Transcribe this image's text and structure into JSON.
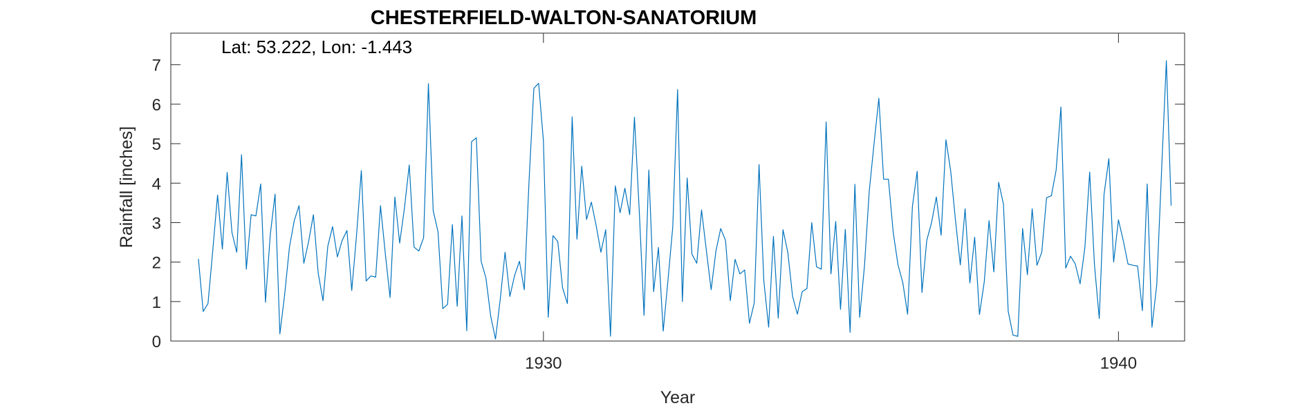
{
  "chart_data": {
    "type": "line",
    "title": "CHESTERFIELD-WALTON-SANATORIUM",
    "annotation": "Lat: 53.222, Lon: -1.443",
    "xlabel": "Year",
    "ylabel": "Rainfall [inches]",
    "xlim": [
      1923.52,
      1941.15
    ],
    "ylim": [
      0,
      7.8
    ],
    "xticks": [
      1930,
      1940
    ],
    "yticks": [
      0,
      1,
      2,
      3,
      4,
      5,
      6,
      7
    ],
    "grid": false,
    "series_color": "#0072BD",
    "series": [
      {
        "x_start": 1924.0,
        "x_step": 0.08333,
        "values": [
          2.08,
          0.75,
          0.95,
          2.3,
          3.7,
          2.33,
          4.27,
          2.75,
          2.25,
          4.72,
          1.82,
          3.2,
          3.17,
          3.98,
          0.98,
          2.7,
          3.72,
          0.18,
          1.18,
          2.38,
          3.05,
          3.43,
          1.97,
          2.52,
          3.2,
          1.72,
          1.02,
          2.4,
          2.9,
          2.13,
          2.55,
          2.8,
          1.28,
          2.68,
          4.32,
          1.52,
          1.65,
          1.62,
          3.43,
          2.22,
          1.1,
          3.65,
          2.48,
          3.37,
          4.46,
          2.38,
          2.28,
          2.62,
          6.52,
          3.3,
          2.77,
          0.82,
          0.93,
          2.95,
          0.88,
          3.17,
          0.26,
          5.05,
          5.15,
          2.02,
          1.6,
          0.63,
          0.05,
          1.07,
          2.25,
          1.13,
          1.67,
          2.02,
          1.3,
          4.05,
          6.4,
          6.53,
          5.07,
          0.6,
          2.67,
          2.52,
          1.35,
          0.95,
          5.68,
          2.58,
          4.43,
          3.08,
          3.52,
          2.93,
          2.25,
          2.82,
          0.12,
          3.93,
          3.25,
          3.87,
          3.2,
          5.67,
          3.3,
          0.65,
          4.33,
          1.25,
          2.37,
          0.25,
          1.55,
          2.9,
          6.37,
          1.0,
          4.13,
          2.2,
          1.97,
          3.32,
          2.3,
          1.3,
          2.28,
          2.85,
          2.55,
          1.02,
          2.07,
          1.7,
          1.8,
          0.45,
          0.97,
          4.47,
          1.52,
          0.35,
          2.65,
          0.58,
          2.82,
          2.25,
          1.13,
          0.68,
          1.25,
          1.33,
          3.0,
          1.88,
          1.82,
          5.55,
          1.7,
          3.03,
          0.8,
          2.83,
          0.22,
          3.97,
          0.6,
          1.9,
          3.8,
          5.0,
          6.15,
          4.1,
          4.1,
          2.75,
          1.93,
          1.48,
          0.68,
          3.4,
          4.3,
          1.23,
          2.55,
          3.0,
          3.65,
          2.68,
          5.1,
          4.3,
          3.05,
          1.93,
          3.35,
          1.47,
          2.63,
          0.67,
          1.5,
          3.05,
          1.75,
          4.02,
          3.47,
          0.75,
          0.15,
          0.12,
          2.85,
          1.68,
          3.35,
          1.92,
          2.25,
          3.63,
          3.68,
          4.33,
          5.93,
          1.85,
          2.15,
          1.95,
          1.45,
          2.37,
          4.28,
          1.93,
          0.57,
          3.72,
          4.62,
          2.0,
          3.07,
          2.55,
          1.95,
          1.92,
          1.9,
          0.77,
          3.98,
          0.35,
          1.43,
          4.3,
          7.1,
          3.43
        ]
      }
    ]
  }
}
